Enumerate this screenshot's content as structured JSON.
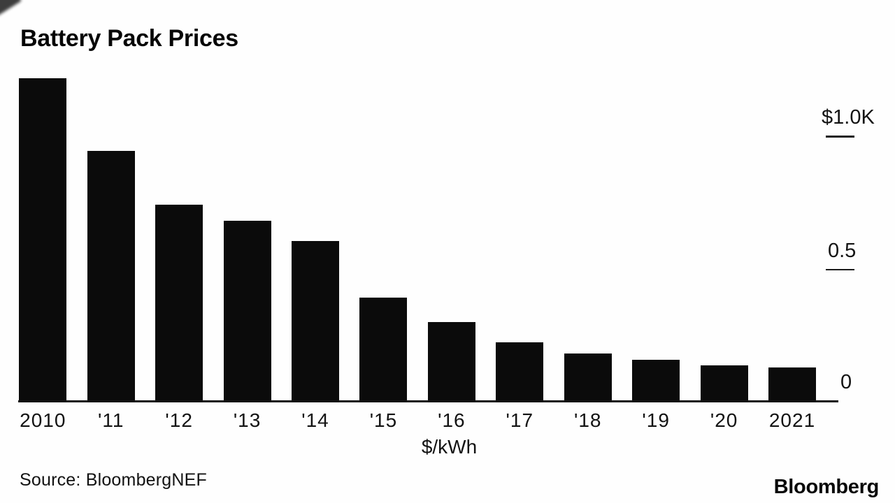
{
  "title": "Battery Pack Prices",
  "source": "Source: BloombergNEF",
  "brand": "Bloomberg",
  "colors": {
    "background": "#fefefe",
    "bar": "#0b0b0b",
    "text": "#131313",
    "axis_line": "#141414"
  },
  "chart_data": {
    "type": "bar",
    "title": "Battery Pack Prices",
    "categories": [
      "2010",
      "'11",
      "'12",
      "'13",
      "'14",
      "'15",
      "'16",
      "'17",
      "'18",
      "'19",
      "'20",
      "2021"
    ],
    "values": [
      1220,
      946,
      744,
      684,
      607,
      393,
      303,
      226,
      185,
      161,
      140,
      132
    ],
    "xlabel": "$/kWh",
    "ylabel": "",
    "ylim": [
      0,
      1220
    ],
    "grid": false,
    "legend_position": "none",
    "y_axis": [
      {
        "label": "$1.0K",
        "value": 1000,
        "tick": true
      },
      {
        "label": "0.5",
        "value": 500,
        "tick": true
      },
      {
        "label": "0",
        "value": 0,
        "tick": false
      }
    ]
  }
}
